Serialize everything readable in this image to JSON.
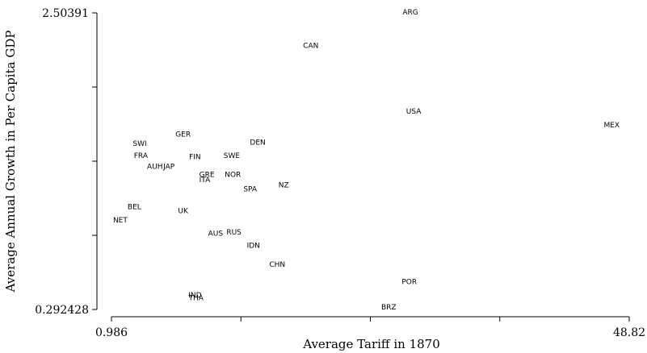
{
  "chart_data": {
    "type": "scatter",
    "xlabel": "Average Tariff in 1870",
    "ylabel": "Average Annual Growth in Per Capita GDP",
    "xlim": [
      0.986,
      48.82
    ],
    "ylim": [
      0.292428,
      2.50391
    ],
    "x_tick_labels": [
      "0.986",
      "48.82"
    ],
    "y_tick_labels": [
      "2.50391",
      "0.292428"
    ],
    "x_ticks": [
      0.986,
      12.945,
      24.903,
      36.862,
      48.82
    ],
    "y_ticks": [
      0.292428,
      0.845298,
      1.398169,
      1.951039,
      2.50391
    ],
    "grid": false,
    "legend": "none",
    "points": [
      {
        "label": "ARG",
        "x": 28.6,
        "y": 2.51
      },
      {
        "label": "CAN",
        "x": 19.4,
        "y": 2.26
      },
      {
        "label": "USA",
        "x": 28.9,
        "y": 1.77
      },
      {
        "label": "MEX",
        "x": 47.2,
        "y": 1.67
      },
      {
        "label": "GER",
        "x": 7.6,
        "y": 1.6
      },
      {
        "label": "DEN",
        "x": 14.5,
        "y": 1.54
      },
      {
        "label": "SWI",
        "x": 3.6,
        "y": 1.53
      },
      {
        "label": "FRA",
        "x": 3.7,
        "y": 1.44
      },
      {
        "label": "FIN",
        "x": 8.7,
        "y": 1.43
      },
      {
        "label": "SWE",
        "x": 12.1,
        "y": 1.44
      },
      {
        "label": "AUH",
        "x": 5.0,
        "y": 1.36
      },
      {
        "label": "JAP",
        "x": 6.3,
        "y": 1.36
      },
      {
        "label": "GRE",
        "x": 9.8,
        "y": 1.3
      },
      {
        "label": "NOR",
        "x": 12.2,
        "y": 1.3
      },
      {
        "label": "ITA",
        "x": 9.6,
        "y": 1.26
      },
      {
        "label": "NZ",
        "x": 16.9,
        "y": 1.22
      },
      {
        "label": "SPA",
        "x": 13.8,
        "y": 1.19
      },
      {
        "label": "BEL",
        "x": 3.1,
        "y": 1.06
      },
      {
        "label": "UK",
        "x": 7.6,
        "y": 1.03
      },
      {
        "label": "NET",
        "x": 1.8,
        "y": 0.96
      },
      {
        "label": "RUS",
        "x": 12.3,
        "y": 0.87
      },
      {
        "label": "AUS",
        "x": 10.6,
        "y": 0.86
      },
      {
        "label": "IDN",
        "x": 14.1,
        "y": 0.77
      },
      {
        "label": "CHN",
        "x": 16.3,
        "y": 0.63
      },
      {
        "label": "POR",
        "x": 28.5,
        "y": 0.5
      },
      {
        "label": "IND",
        "x": 8.7,
        "y": 0.4
      },
      {
        "label": "THA",
        "x": 8.8,
        "y": 0.38
      },
      {
        "label": "BRZ",
        "x": 26.6,
        "y": 0.31
      }
    ]
  }
}
